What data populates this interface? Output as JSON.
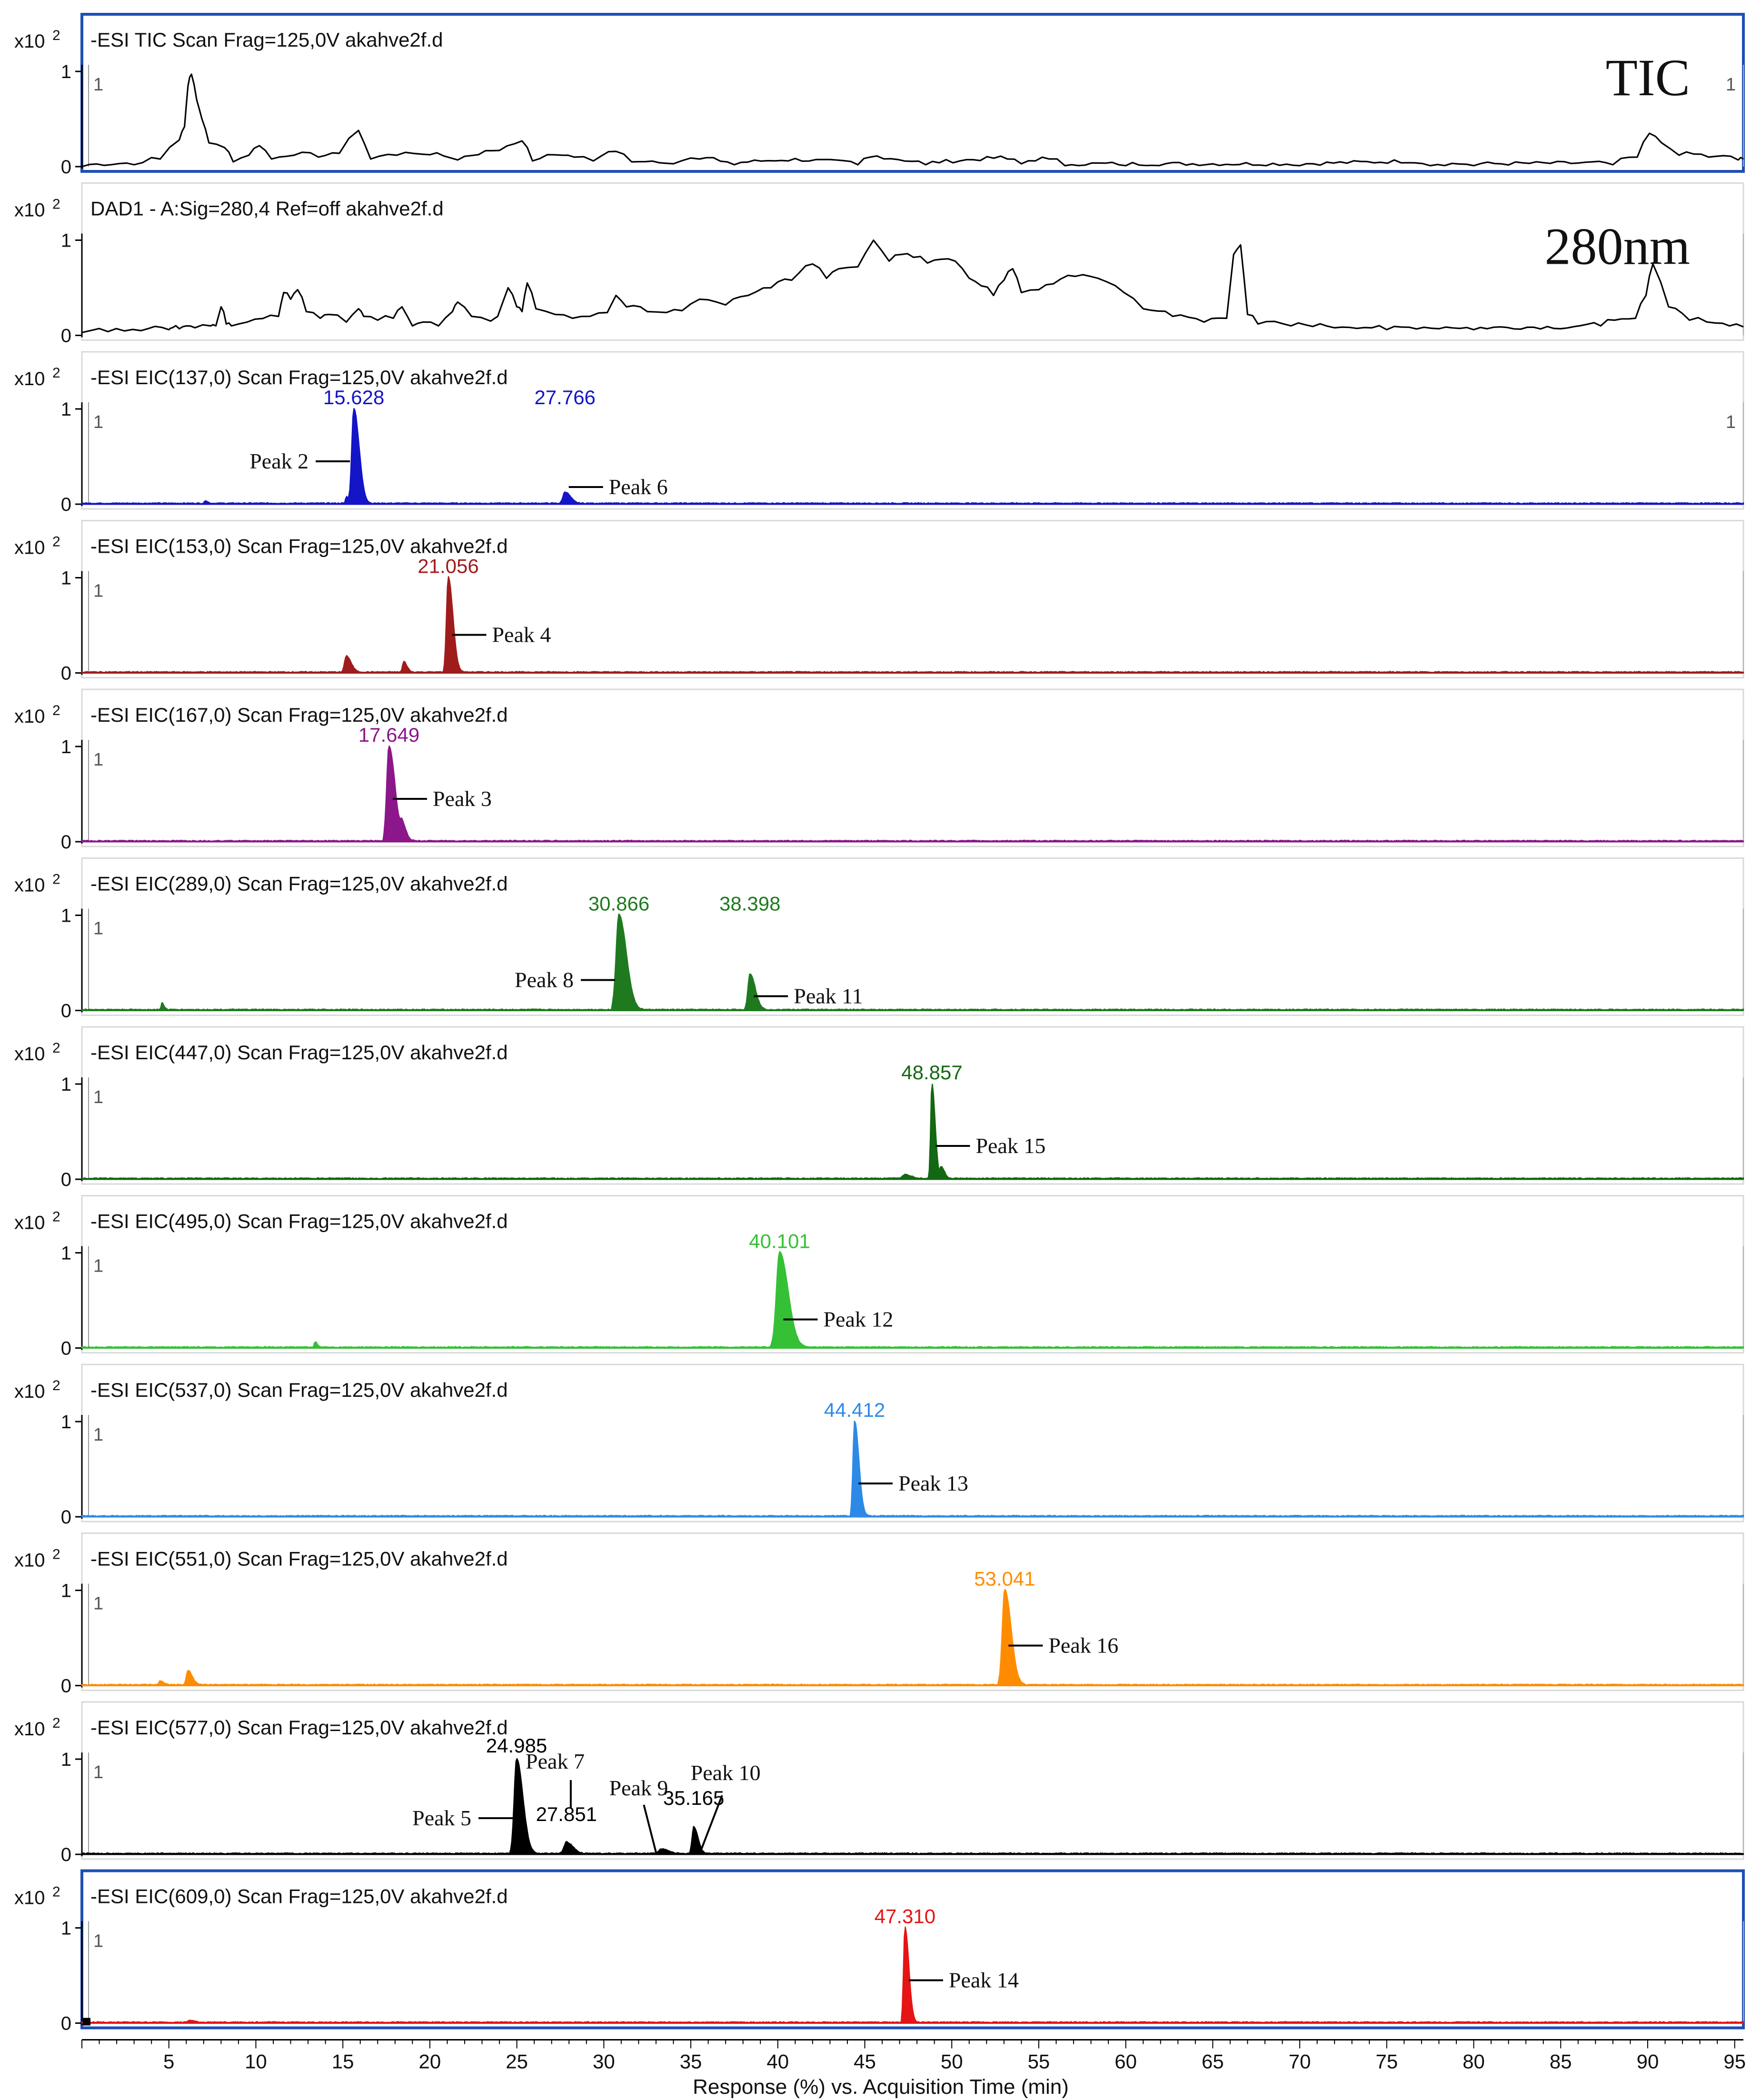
{
  "axis": {
    "x_title": "Response (%) vs. Acquisition Time (min)",
    "x_ticks": [
      5,
      10,
      15,
      20,
      25,
      30,
      35,
      40,
      45,
      50,
      55,
      60,
      65,
      70,
      75,
      80,
      85,
      90,
      95
    ],
    "x_range": [
      0,
      95.5
    ],
    "y_exponent_label": "x10",
    "y_exponent_sup": "2",
    "y_tick_labels": [
      "1",
      "0"
    ]
  },
  "chart_data": [
    {
      "type": "line",
      "title": "-ESI TIC Scan Frag=125,0V akahve2f.d",
      "trace_label": "TIC",
      "corner_mark_left": "1",
      "corner_mark_right": "1",
      "color": "#000000",
      "selected": true,
      "ylim": [
        0,
        1
      ],
      "x": [
        0,
        3,
        4.5,
        5.6,
        5.9,
        6.1,
        6.3,
        6.6,
        6.9,
        7.3,
        8.2,
        8.7,
        9.6,
        10.2,
        10.9,
        12.2,
        13.6,
        14.8,
        15.9,
        16.6,
        18.1,
        19.6,
        21.6,
        24,
        25.3,
        25.9,
        27.6,
        28.3,
        29.4,
        30.7,
        31.6,
        34,
        35.5,
        37.5,
        40.6,
        44.6,
        45.3,
        48.5,
        53.2,
        54,
        55.6,
        56.5,
        60,
        70,
        76.6,
        77.5,
        80,
        88,
        89.4,
        90.1,
        90.8,
        91.8,
        93.5,
        95.2,
        95.5
      ],
      "y": [
        0,
        0.02,
        0.08,
        0.28,
        0.42,
        0.85,
        0.97,
        0.7,
        0.5,
        0.25,
        0.2,
        0.05,
        0.12,
        0.22,
        0.08,
        0.12,
        0.1,
        0.14,
        0.38,
        0.08,
        0.12,
        0.13,
        0.07,
        0.17,
        0.27,
        0.06,
        0.12,
        0.1,
        0.06,
        0.16,
        0.05,
        0.03,
        0.08,
        0.02,
        0.06,
        0.02,
        0.1,
        0.02,
        0.08,
        0.03,
        0.08,
        0.01,
        0.01,
        0.01,
        0.04,
        0.01,
        0.01,
        0.02,
        0.1,
        0.35,
        0.25,
        0.12,
        0.1,
        0.07,
        0.08
      ]
    },
    {
      "type": "line",
      "title": "DAD1 - A:Sig=280,4  Ref=off akahve2f.d",
      "trace_label": "280nm",
      "color": "#000000",
      "selected": false,
      "ylim": [
        0,
        1
      ],
      "x": [
        0,
        1.5,
        3.4,
        5,
        5.2,
        5.6,
        6,
        6.5,
        7.4,
        7.7,
        8,
        8.3,
        8.6,
        9.5,
        11.3,
        11.6,
        12,
        12.4,
        12.9,
        13.7,
        14.2,
        15.2,
        15.9,
        16.2,
        17,
        17.9,
        18.4,
        19,
        19.6,
        20.5,
        21.3,
        21.6,
        22.4,
        23.5,
        23.9,
        24.5,
        25,
        25.3,
        25.6,
        26.1,
        27.2,
        28.2,
        29.2,
        30.2,
        30.7,
        31.3,
        32.5,
        33.6,
        34.5,
        35.5,
        37,
        38.3,
        39.6,
        40.8,
        42,
        42.8,
        43.5,
        44.6,
        45.5,
        46.4,
        47.1,
        47.8,
        48.6,
        49.4,
        50.2,
        51,
        51.7,
        52.4,
        53,
        53.5,
        54,
        55,
        57.1,
        58.4,
        59.9,
        61,
        62.7,
        64.5,
        65.8,
        66.2,
        66.6,
        67,
        67.6,
        69.5,
        72,
        75,
        78,
        80,
        85,
        87.3,
        88.1,
        89.3,
        89.9,
        90.3,
        91.2,
        92.4,
        93.9,
        94.7,
        95.5
      ],
      "y": [
        0.03,
        0.04,
        0.05,
        0.06,
        0.08,
        0.07,
        0.1,
        0.08,
        0.1,
        0.1,
        0.3,
        0.12,
        0.1,
        0.14,
        0.2,
        0.45,
        0.38,
        0.48,
        0.25,
        0.18,
        0.22,
        0.14,
        0.28,
        0.2,
        0.16,
        0.18,
        0.3,
        0.1,
        0.14,
        0.1,
        0.25,
        0.35,
        0.2,
        0.15,
        0.2,
        0.5,
        0.3,
        0.25,
        0.55,
        0.28,
        0.22,
        0.18,
        0.2,
        0.24,
        0.42,
        0.3,
        0.25,
        0.24,
        0.26,
        0.38,
        0.32,
        0.42,
        0.5,
        0.58,
        0.75,
        0.6,
        0.7,
        0.72,
        1.0,
        0.78,
        0.85,
        0.82,
        0.76,
        0.8,
        0.78,
        0.6,
        0.52,
        0.42,
        0.58,
        0.7,
        0.45,
        0.48,
        0.62,
        0.6,
        0.45,
        0.28,
        0.2,
        0.14,
        0.18,
        0.85,
        0.95,
        0.22,
        0.12,
        0.1,
        0.08,
        0.06,
        0.07,
        0.06,
        0.07,
        0.1,
        0.16,
        0.18,
        0.42,
        0.75,
        0.3,
        0.16,
        0.13,
        0.1,
        0.09
      ]
    },
    {
      "type": "line",
      "title": "-ESI EIC(137,0) Scan Frag=125,0V akahve2f.d",
      "corner_mark_left": "1",
      "corner_mark_right": "1",
      "color": "#1414c8",
      "fill": true,
      "ylim": [
        0,
        1
      ],
      "peaks": [
        {
          "x": 15.628,
          "h": 1.0,
          "w": 0.25
        },
        {
          "x": 15.2,
          "h": 0.07,
          "w": 0.1
        },
        {
          "x": 27.766,
          "h": 0.12,
          "w": 0.25
        },
        {
          "x": 7.1,
          "h": 0.03,
          "w": 0.1
        }
      ],
      "annotations": [
        {
          "x": 15.628,
          "value": "15.628",
          "peak_label": "Peak 2",
          "side": "left",
          "at": 0.45
        },
        {
          "x": 27.766,
          "value": "27.766",
          "peak_label": "Peak 6",
          "side": "right",
          "at": 0.18
        }
      ]
    },
    {
      "type": "line",
      "title": "-ESI EIC(153,0) Scan Frag=125,0V akahve2f.d",
      "corner_mark_left": "1",
      "color": "#a01c1c",
      "fill": true,
      "ylim": [
        0,
        1
      ],
      "peaks": [
        {
          "x": 21.056,
          "h": 1.0,
          "w": 0.22
        },
        {
          "x": 15.2,
          "h": 0.17,
          "w": 0.22
        },
        {
          "x": 18.5,
          "h": 0.11,
          "w": 0.15
        }
      ],
      "annotations": [
        {
          "x": 21.056,
          "value": "21.056",
          "peak_label": "Peak 4",
          "side": "right",
          "at": 0.4
        }
      ]
    },
    {
      "type": "line",
      "title": "-ESI EIC(167,0) Scan Frag=125,0V akahve2f.d",
      "corner_mark_left": "1",
      "color": "#8b178b",
      "fill": true,
      "ylim": [
        0,
        1
      ],
      "peaks": [
        {
          "x": 17.649,
          "h": 1.0,
          "w": 0.28
        },
        {
          "x": 18.4,
          "h": 0.15,
          "w": 0.2
        }
      ],
      "annotations": [
        {
          "x": 17.649,
          "value": "17.649",
          "peak_label": "Peak 3",
          "side": "right",
          "at": 0.45
        }
      ]
    },
    {
      "type": "line",
      "title": "-ESI EIC(289,0) Scan Frag=125,0V akahve2f.d",
      "corner_mark_left": "1",
      "color": "#1f7a1f",
      "fill": true,
      "ylim": [
        0,
        1
      ],
      "peaks": [
        {
          "x": 30.866,
          "h": 1.0,
          "w": 0.35
        },
        {
          "x": 38.398,
          "h": 0.38,
          "w": 0.25
        },
        {
          "x": 4.6,
          "h": 0.07,
          "w": 0.1
        }
      ],
      "annotations": [
        {
          "x": 30.866,
          "value": "30.866",
          "peak_label": "Peak 8",
          "side": "left",
          "at": 0.32
        },
        {
          "x": 38.398,
          "value": "38.398",
          "peak_label": "Peak 11",
          "side": "right",
          "at": 0.15
        }
      ]
    },
    {
      "type": "line",
      "title": "-ESI EIC(447,0) Scan Frag=125,0V akahve2f.d",
      "corner_mark_left": "1",
      "color": "#136813",
      "fill": true,
      "ylim": [
        0,
        1
      ],
      "peaks": [
        {
          "x": 48.857,
          "h": 1.0,
          "w": 0.15
        },
        {
          "x": 49.4,
          "h": 0.12,
          "w": 0.15
        },
        {
          "x": 47.3,
          "h": 0.04,
          "w": 0.3
        }
      ],
      "annotations": [
        {
          "x": 48.857,
          "value": "48.857",
          "peak_label": "Peak 15",
          "side": "right",
          "at": 0.35
        }
      ]
    },
    {
      "type": "line",
      "title": "-ESI EIC(495,0) Scan Frag=125,0V akahve2f.d",
      "corner_mark_left": "1",
      "color": "#35c035",
      "fill": true,
      "ylim": [
        0,
        1
      ],
      "peaks": [
        {
          "x": 40.101,
          "h": 1.0,
          "w": 0.4
        },
        {
          "x": 13.4,
          "h": 0.06,
          "w": 0.1
        }
      ],
      "annotations": [
        {
          "x": 40.101,
          "value": "40.101",
          "peak_label": "Peak 12",
          "side": "right",
          "at": 0.3
        }
      ]
    },
    {
      "type": "line",
      "title": "-ESI EIC(537,0) Scan Frag=125,0V akahve2f.d",
      "corner_mark_left": "1",
      "color": "#2c8ae6",
      "fill": true,
      "ylim": [
        0,
        1
      ],
      "peaks": [
        {
          "x": 44.412,
          "h": 1.0,
          "w": 0.2
        }
      ],
      "annotations": [
        {
          "x": 44.412,
          "value": "44.412",
          "peak_label": "Peak 13",
          "side": "right",
          "at": 0.35
        }
      ]
    },
    {
      "type": "line",
      "title": "-ESI EIC(551,0) Scan Frag=125,0V akahve2f.d",
      "corner_mark_left": "1",
      "color": "#ff8c00",
      "fill": true,
      "ylim": [
        0,
        1
      ],
      "peaks": [
        {
          "x": 53.041,
          "h": 1.0,
          "w": 0.3
        },
        {
          "x": 6.1,
          "h": 0.15,
          "w": 0.2
        },
        {
          "x": 4.5,
          "h": 0.04,
          "w": 0.15
        }
      ],
      "annotations": [
        {
          "x": 53.041,
          "value": "53.041",
          "peak_label": "Peak 16",
          "side": "right",
          "at": 0.42
        }
      ]
    },
    {
      "type": "line",
      "title": "-ESI EIC(577,0) Scan Frag=125,0V akahve2f.d",
      "corner_mark_left": "1",
      "color": "#000000",
      "fill": true,
      "ylim": [
        0,
        1
      ],
      "peaks": [
        {
          "x": 24.985,
          "h": 1.0,
          "w": 0.3
        },
        {
          "x": 27.851,
          "h": 0.12,
          "w": 0.3
        },
        {
          "x": 33.3,
          "h": 0.05,
          "w": 0.3
        },
        {
          "x": 35.165,
          "h": 0.28,
          "w": 0.2
        }
      ],
      "annotations": [
        {
          "x": 24.985,
          "value": "24.985",
          "value_pos": "top",
          "peak_label": "Peak 5",
          "side": "left",
          "at": 0.38
        },
        {
          "x": 27.851,
          "value": "27.851",
          "value_pos": "top"
        },
        {
          "x": 35.165,
          "value": "35.165",
          "value_pos": "top"
        }
      ],
      "free_labels": [
        {
          "text": "Peak 7",
          "x": 27.2,
          "y": 0.9
        },
        {
          "text": "Peak 9",
          "x": 32.0,
          "y": 0.62
        },
        {
          "text": "Peak 10",
          "x": 37.0,
          "y": 0.78
        }
      ]
    },
    {
      "type": "line",
      "title": "-ESI EIC(609,0) Scan Frag=125,0V akahve2f.d",
      "corner_mark_left": "1",
      "color": "#e61414",
      "fill": true,
      "selected": true,
      "ylim": [
        0,
        1
      ],
      "peaks": [
        {
          "x": 47.31,
          "h": 1.0,
          "w": 0.18
        },
        {
          "x": 6.2,
          "h": 0.02,
          "w": 0.2
        }
      ],
      "annotations": [
        {
          "x": 47.31,
          "value": "47.310",
          "peak_label": "Peak 14",
          "side": "right",
          "at": 0.45
        }
      ]
    }
  ]
}
